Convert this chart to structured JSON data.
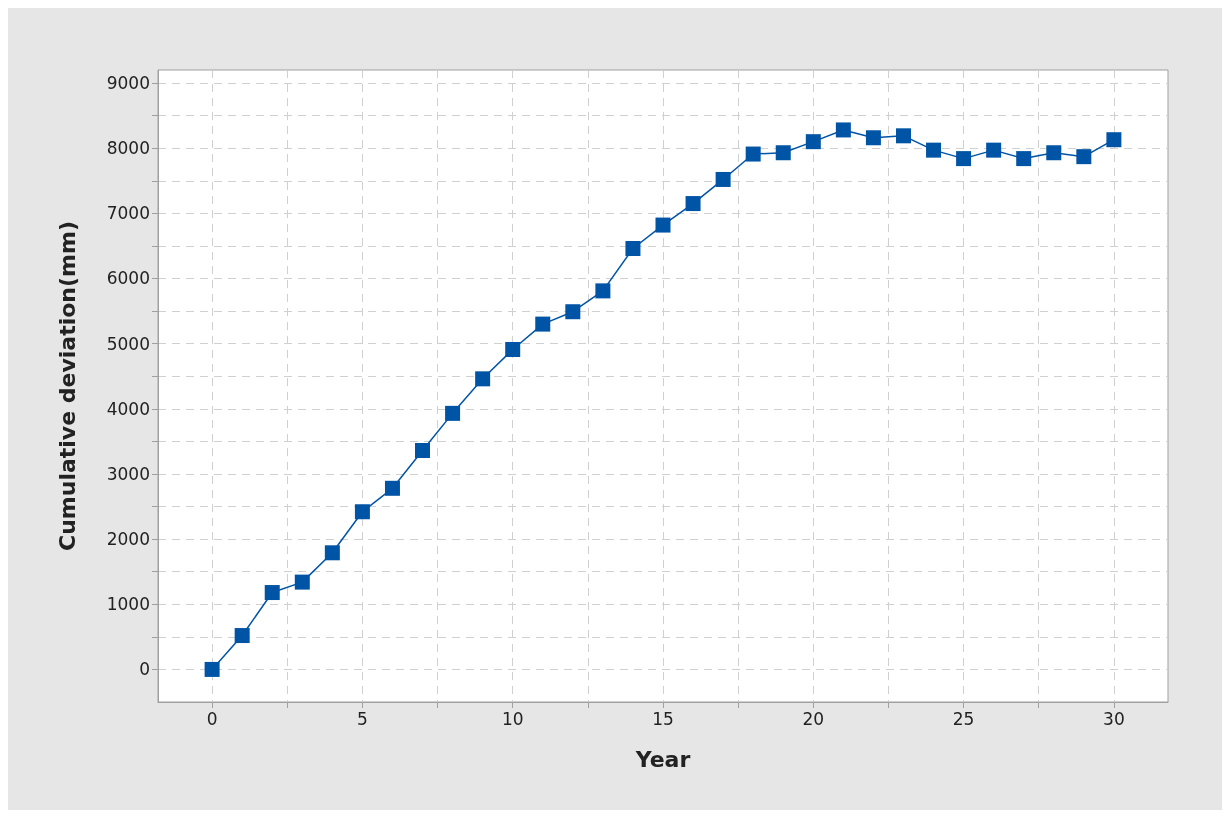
{
  "chart_data": {
    "type": "line",
    "xlabel": "Year",
    "ylabel": "Cumulative deviation(mm)",
    "x": [
      0,
      1,
      2,
      3,
      4,
      5,
      6,
      7,
      8,
      9,
      10,
      11,
      12,
      13,
      14,
      15,
      16,
      17,
      18,
      19,
      20,
      21,
      22,
      23,
      24,
      25,
      26,
      27,
      28,
      29,
      30
    ],
    "series": [
      {
        "color": "#0054a6",
        "values": [
          0,
          520,
          1180,
          1340,
          1790,
          2420,
          2780,
          3360,
          3930,
          4460,
          4910,
          5300,
          5490,
          5810,
          6460,
          6820,
          7150,
          7520,
          7910,
          7930,
          8100,
          8280,
          8160,
          8190,
          7970,
          7840,
          7970,
          7840,
          7930,
          7870,
          8130
        ]
      }
    ],
    "xlim": [
      -1.8,
      31.8
    ],
    "ylim": [
      -500,
      9200
    ],
    "xticks": [
      0,
      {
        "value": 2.5,
        "label": null
      },
      5,
      {
        "value": 7.5,
        "label": null
      },
      10,
      {
        "value": 12.5,
        "label": null
      },
      15,
      {
        "value": 17.5,
        "label": null
      },
      20,
      {
        "value": 22.5,
        "label": null
      },
      25,
      {
        "value": 27.5,
        "label": null
      },
      30
    ],
    "yticks": [
      0,
      {
        "value": 500,
        "label": null
      },
      1000,
      {
        "value": 1500,
        "label": null
      },
      2000,
      {
        "value": 2500,
        "label": null
      },
      3000,
      {
        "value": 3500,
        "label": null
      },
      4000,
      {
        "value": 4500,
        "label": null
      },
      5000,
      {
        "value": 5500,
        "label": null
      },
      6000,
      {
        "value": 6500,
        "label": null
      },
      7000,
      {
        "value": 7500,
        "label": null
      },
      8000,
      {
        "value": 8500,
        "label": null
      },
      9000
    ],
    "grid": true,
    "marker": "square",
    "line_style": "solid"
  }
}
